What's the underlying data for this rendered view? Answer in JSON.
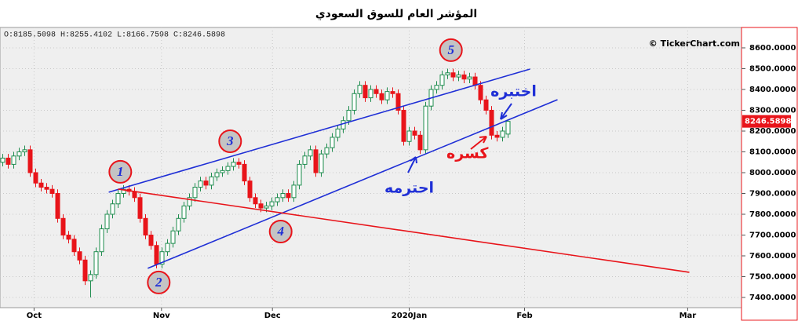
{
  "chart_data": {
    "type": "candlestick",
    "title": "المؤشر العام للسوق السعودي",
    "info": "O:8185.5098 H:8255.4102 L:8166.7598 C:8246.5898",
    "watermark": "© TickerChart.com",
    "up_color": "#1e8c4e",
    "down_color": "#e8141a",
    "x": [
      0,
      1,
      2,
      3,
      4,
      5,
      6,
      7,
      8,
      9,
      10,
      11,
      12,
      13,
      14,
      15,
      16,
      17,
      18,
      19,
      20,
      21,
      22,
      23,
      24,
      25,
      26,
      27,
      28,
      29,
      30,
      31,
      32,
      33,
      34,
      35,
      36,
      37,
      38,
      39,
      40,
      41,
      42,
      43,
      44,
      45,
      46,
      47,
      48,
      49,
      50,
      51,
      52,
      53,
      54,
      55,
      56,
      57,
      58,
      59,
      60,
      61,
      62,
      63,
      64,
      65,
      66,
      67,
      68,
      69,
      70,
      71,
      72,
      73,
      74,
      75,
      76,
      77,
      78,
      79,
      80,
      81,
      82,
      83,
      84,
      85,
      86,
      87,
      88,
      89,
      90,
      91,
      92
    ],
    "open": [
      8050,
      8070,
      8040,
      8080,
      8100,
      8110,
      8000,
      7950,
      7930,
      7920,
      7900,
      7780,
      7700,
      7680,
      7620,
      7580,
      7480,
      7510,
      7620,
      7730,
      7800,
      7850,
      7900,
      7920,
      7910,
      7880,
      7780,
      7700,
      7650,
      7560,
      7620,
      7660,
      7720,
      7780,
      7840,
      7880,
      7930,
      7960,
      7940,
      7980,
      8000,
      8010,
      8030,
      8050,
      8040,
      7960,
      7880,
      7850,
      7830,
      7840,
      7860,
      7880,
      7900,
      7880,
      7940,
      8040,
      8080,
      8110,
      8000,
      8090,
      8120,
      8170,
      8210,
      8250,
      8300,
      8380,
      8420,
      8360,
      8400,
      8380,
      8350,
      8390,
      8380,
      8300,
      8150,
      8200,
      8180,
      8110,
      8320,
      8400,
      8420,
      8470,
      8480,
      8460,
      8470,
      8450,
      8460,
      8420,
      8350,
      8300,
      8180,
      8170,
      8185.5098
    ],
    "high": [
      8090,
      8090,
      8100,
      8120,
      8130,
      8130,
      8020,
      7970,
      7950,
      7940,
      7920,
      7800,
      7720,
      7700,
      7640,
      7600,
      7530,
      7640,
      7750,
      7820,
      7870,
      7920,
      7940,
      7940,
      7930,
      7900,
      7800,
      7720,
      7670,
      7640,
      7680,
      7740,
      7800,
      7860,
      7900,
      7950,
      7980,
      7980,
      8000,
      8020,
      8030,
      8050,
      8070,
      8070,
      8060,
      7980,
      7900,
      7870,
      7860,
      7880,
      7900,
      7920,
      7920,
      7960,
      8060,
      8100,
      8130,
      8130,
      8110,
      8140,
      8190,
      8230,
      8270,
      8320,
      8400,
      8440,
      8440,
      8420,
      8420,
      8400,
      8410,
      8410,
      8400,
      8320,
      8220,
      8220,
      8200,
      8340,
      8420,
      8440,
      8490,
      8500,
      8500,
      8490,
      8490,
      8480,
      8480,
      8440,
      8370,
      8320,
      8200,
      8220,
      8255.4102
    ],
    "low": [
      8030,
      8020,
      8020,
      8060,
      8080,
      7980,
      7930,
      7910,
      7900,
      7880,
      7760,
      7680,
      7660,
      7600,
      7560,
      7460,
      7400,
      7490,
      7600,
      7710,
      7780,
      7830,
      7880,
      7890,
      7860,
      7760,
      7680,
      7630,
      7540,
      7540,
      7600,
      7640,
      7700,
      7760,
      7820,
      7860,
      7910,
      7920,
      7920,
      7960,
      7980,
      7990,
      8010,
      8020,
      7940,
      7860,
      7830,
      7810,
      7810,
      7820,
      7840,
      7860,
      7860,
      7860,
      7920,
      8020,
      8060,
      7980,
      7980,
      8070,
      8100,
      8150,
      8190,
      8230,
      8280,
      8360,
      8340,
      8340,
      8360,
      8330,
      8330,
      8360,
      8280,
      8130,
      8130,
      8160,
      8090,
      8090,
      8300,
      8380,
      8400,
      8450,
      8440,
      8440,
      8430,
      8430,
      8400,
      8330,
      8280,
      8160,
      8150,
      8150,
      8166.7598
    ],
    "close": [
      8070,
      8040,
      8080,
      8100,
      8110,
      8000,
      7950,
      7930,
      7920,
      7900,
      7780,
      7700,
      7680,
      7620,
      7580,
      7480,
      7510,
      7620,
      7730,
      7800,
      7850,
      7900,
      7920,
      7910,
      7880,
      7780,
      7700,
      7650,
      7560,
      7620,
      7660,
      7720,
      7780,
      7840,
      7880,
      7930,
      7960,
      7940,
      7980,
      8000,
      8010,
      8030,
      8050,
      8040,
      7960,
      7880,
      7850,
      7830,
      7840,
      7860,
      7880,
      7900,
      7880,
      7940,
      8040,
      8080,
      8110,
      8000,
      8090,
      8120,
      8170,
      8210,
      8250,
      8300,
      8380,
      8420,
      8360,
      8400,
      8380,
      8350,
      8390,
      8380,
      8300,
      8150,
      8200,
      8180,
      8110,
      8320,
      8400,
      8420,
      8470,
      8480,
      8460,
      8470,
      8450,
      8460,
      8420,
      8350,
      8300,
      8180,
      8170,
      8200,
      8246.5898
    ],
    "xlim": [
      -0.5,
      134.5
    ],
    "xticks": [
      {
        "value": 5.7,
        "label": "Oct"
      },
      {
        "value": 28.9,
        "label": "Nov"
      },
      {
        "value": 49.1,
        "label": "Dec"
      },
      {
        "value": 74,
        "label": "2020Jan"
      },
      {
        "value": 95,
        "label": "Feb"
      },
      {
        "value": 124.7,
        "label": "Mar"
      }
    ],
    "ylim": [
      7351,
      8698
    ],
    "yticks": [
      {
        "value": 7400,
        "label": "7400.0000"
      },
      {
        "value": 7500,
        "label": "7500.0000"
      },
      {
        "value": 7600,
        "label": "7600.0000"
      },
      {
        "value": 7700,
        "label": "7700.0000"
      },
      {
        "value": 7800,
        "label": "7800.0000"
      },
      {
        "value": 7900,
        "label": "7900.0000"
      },
      {
        "value": 8000,
        "label": "8000.0000"
      },
      {
        "value": 8100,
        "label": "8100.0000"
      },
      {
        "value": 8200,
        "label": "8200.0000"
      },
      {
        "value": 8300,
        "label": "8300.0000"
      },
      {
        "value": 8400,
        "label": "8400.0000"
      },
      {
        "value": 8500,
        "label": "8500.0000"
      },
      {
        "value": 8600,
        "label": "8600.0000"
      }
    ],
    "grid": true,
    "trendlines": [
      {
        "color": "#1f2fd6",
        "x": [
          19.3,
          96
        ],
        "y": [
          7906,
          8498
        ]
      },
      {
        "color": "#1f2fd6",
        "x": [
          26.4,
          101
        ],
        "y": [
          7540,
          8351
        ]
      },
      {
        "color": "#e8141a",
        "x": [
          21,
          125
        ],
        "y": [
          7921,
          7521
        ]
      }
    ],
    "markers": [
      {
        "text": "1",
        "x": 21.4,
        "y": 8004
      },
      {
        "text": "2",
        "x": 28.4,
        "y": 7472
      },
      {
        "text": "3",
        "x": 41.4,
        "y": 8151
      },
      {
        "text": "4",
        "x": 50.6,
        "y": 7717
      },
      {
        "text": "5",
        "x": 81.6,
        "y": 8589
      }
    ],
    "notes": [
      {
        "text": "اختبره",
        "color": "#1f2fd6",
        "x": 93,
        "y": 8389
      },
      {
        "text": "كسره",
        "color": "#e8141a",
        "x": 84.6,
        "y": 8091
      },
      {
        "text": "احترمه",
        "color": "#1f2fd6",
        "x": 74,
        "y": 7925
      }
    ]
  }
}
